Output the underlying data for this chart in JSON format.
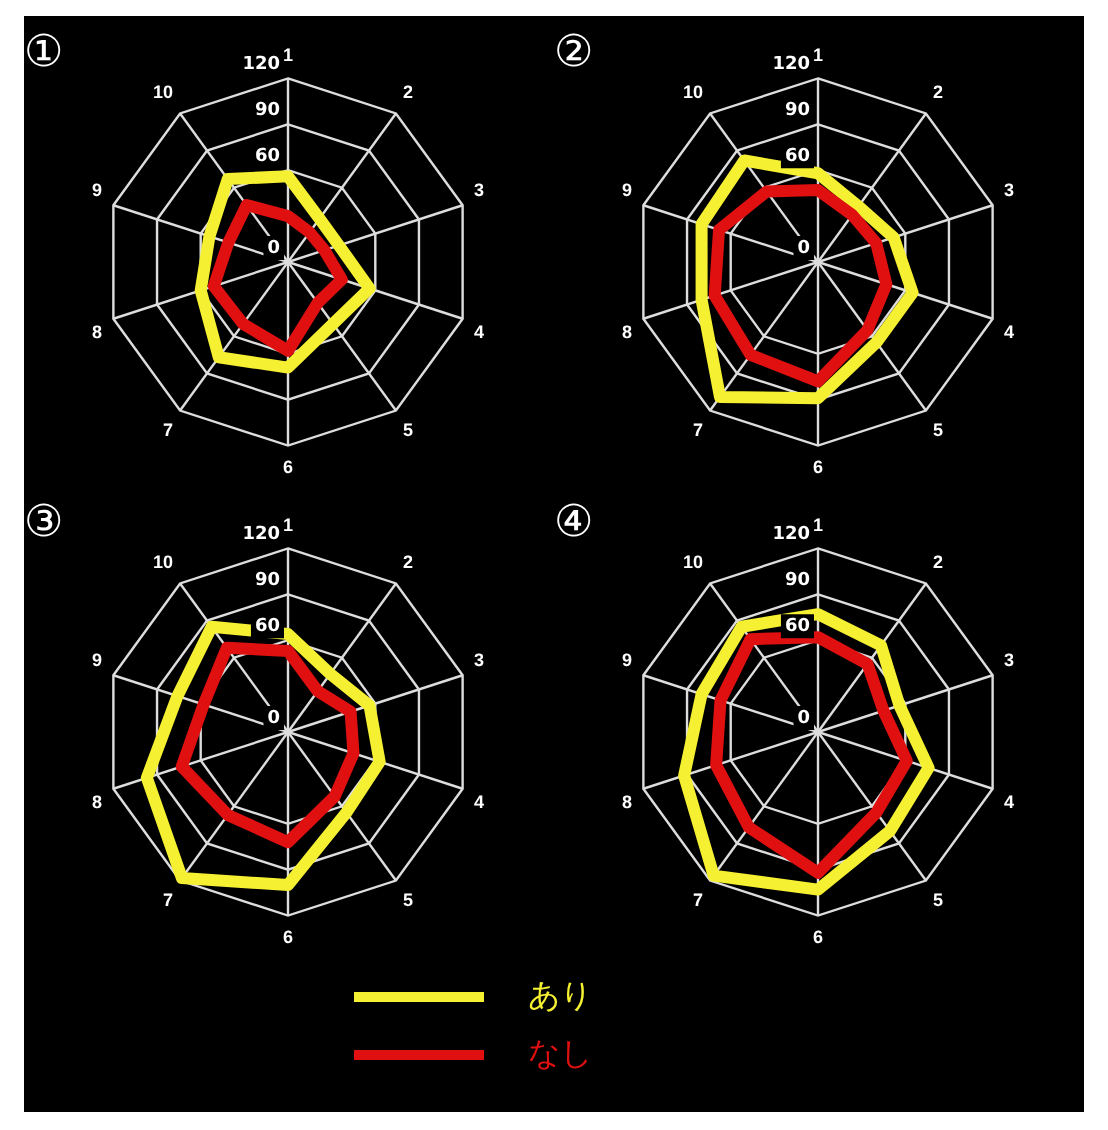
{
  "chart_data": [
    {
      "type": "radar",
      "title": "①",
      "categories": [
        "1",
        "2",
        "3",
        "4",
        "5",
        "6",
        "7",
        "8",
        "9",
        "10"
      ],
      "ylim": [
        0,
        120
      ],
      "yticks": [
        0,
        60,
        90,
        120
      ],
      "grid": true,
      "marker": "none",
      "legend": false,
      "series": [
        {
          "color": "#f5f032",
          "values": [
            56,
            35,
            35,
            56,
            50,
            69,
            77,
            60,
            54,
            67
          ]
        },
        {
          "color": "#e01010",
          "values": [
            30,
            24,
            25,
            37,
            33,
            58,
            50,
            51,
            41,
            46
          ]
        }
      ]
    },
    {
      "type": "radar",
      "title": "②",
      "categories": [
        "1",
        "2",
        "3",
        "4",
        "5",
        "6",
        "7",
        "8",
        "9",
        "10"
      ],
      "ylim": [
        0,
        120
      ],
      "yticks": [
        0,
        60,
        90,
        120
      ],
      "grid": true,
      "marker": "none",
      "legend": false,
      "series": [
        {
          "color": "#f5f032",
          "values": [
            58,
            45,
            52,
            65,
            65,
            89,
            109,
            80,
            80,
            82
          ]
        },
        {
          "color": "#e01010",
          "values": [
            47,
            38,
            40,
            47,
            55,
            78,
            75,
            71,
            68,
            57
          ]
        }
      ]
    },
    {
      "type": "radar",
      "title": "③",
      "categories": [
        "1",
        "2",
        "3",
        "4",
        "5",
        "6",
        "7",
        "8",
        "9",
        "10"
      ],
      "ylim": [
        0,
        120
      ],
      "yticks": [
        0,
        60,
        90,
        120
      ],
      "grid": true,
      "marker": "none",
      "legend": false,
      "series": [
        {
          "color": "#f5f032",
          "values": [
            64,
            47,
            56,
            63,
            65,
            100,
            118,
            97,
            76,
            85
          ]
        },
        {
          "color": "#e01010",
          "values": [
            53,
            33,
            43,
            45,
            52,
            72,
            67,
            73,
            58,
            68
          ]
        }
      ]
    },
    {
      "type": "radar",
      "title": "④",
      "categories": [
        "1",
        "2",
        "3",
        "4",
        "5",
        "6",
        "7",
        "8",
        "9",
        "10"
      ],
      "ylim": [
        0,
        120
      ],
      "yticks": [
        0,
        60,
        90,
        120
      ],
      "grid": true,
      "marker": "none",
      "legend": "bottom",
      "series": [
        {
          "name": "あり",
          "color": "#f5f032",
          "values": [
            77,
            70,
            56,
            76,
            80,
            103,
            116,
            92,
            80,
            85
          ]
        },
        {
          "name": "なし",
          "color": "#e01010",
          "values": [
            62,
            55,
            45,
            61,
            65,
            92,
            77,
            70,
            67,
            75
          ]
        }
      ]
    }
  ]
}
